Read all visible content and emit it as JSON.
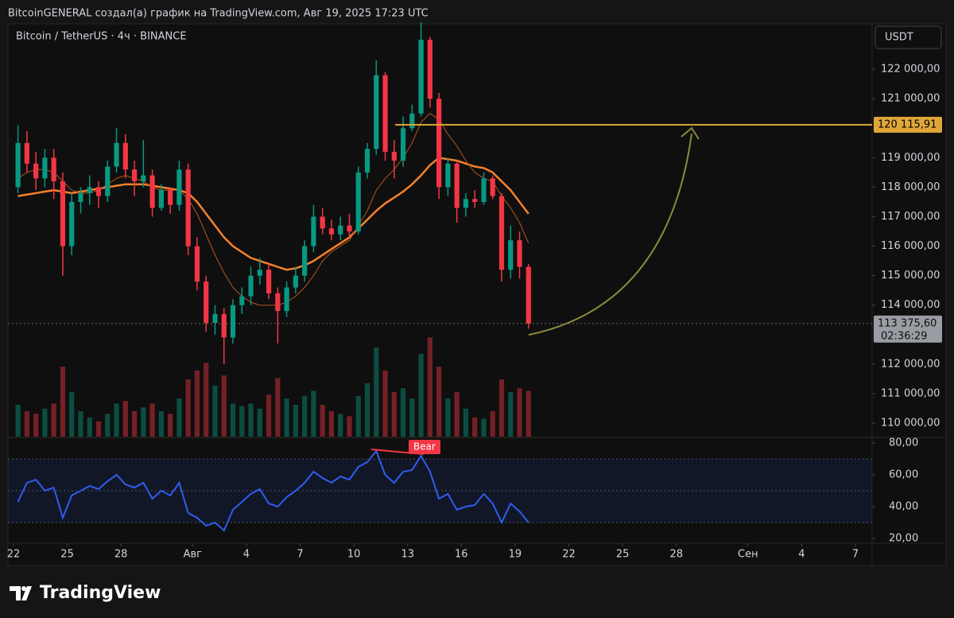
{
  "header": "BitcoinGENERAL создал(а) график на TradingView.com, Авг 19, 2025 17:23 UTC",
  "footer_logo": "TradingView",
  "currency_button": "USDT",
  "chart_data": {
    "type": "candlestick",
    "title": "Bitcoin / TetherUS · 4ч · BINANCE",
    "up_color": "#089981",
    "down_color": "#f23645",
    "x": [
      0.25,
      0.75,
      1.25,
      1.75,
      2.25,
      2.75,
      3.25,
      3.75,
      4.25,
      4.75,
      5.25,
      5.75,
      6.25,
      6.75,
      7.25,
      7.75,
      8.25,
      8.75,
      9.25,
      9.75,
      10.25,
      10.75,
      11.25,
      11.75,
      12.25,
      12.75,
      13.25,
      13.75,
      14.25,
      14.75,
      15.25,
      15.75,
      16.25,
      16.75,
      17.25,
      17.75,
      18.25,
      18.75,
      19.25,
      19.75,
      20.25,
      20.75,
      21.25,
      21.75,
      22.25,
      22.75,
      23.25,
      23.75,
      24.25,
      24.75,
      25.25,
      25.75,
      26.25,
      26.75,
      27.25,
      27.75,
      28.25,
      28.75
    ],
    "open": [
      118000,
      119500,
      118800,
      118300,
      119000,
      118200,
      116000,
      117500,
      117800,
      118000,
      117700,
      118700,
      119500,
      118600,
      118200,
      118400,
      117300,
      117900,
      117400,
      118600,
      116000,
      114800,
      113400,
      113700,
      112900,
      114000,
      114300,
      115000,
      115200,
      114400,
      113800,
      114600,
      115000,
      116000,
      117000,
      116600,
      116400,
      116700,
      116500,
      118500,
      119300,
      121800,
      119200,
      118900,
      120000,
      120500,
      123000,
      121000,
      118000,
      118800,
      117300,
      117600,
      117500,
      118300,
      117700,
      115200,
      116200,
      115300
    ],
    "high": [
      120100,
      119900,
      119200,
      119300,
      119300,
      118500,
      117800,
      118000,
      118400,
      118200,
      118900,
      120000,
      119800,
      118900,
      119600,
      118600,
      118100,
      118000,
      118900,
      118800,
      116300,
      115000,
      114000,
      113900,
      114200,
      114600,
      115300,
      115600,
      115400,
      114600,
      114800,
      115300,
      116200,
      117400,
      117300,
      116900,
      117000,
      117100,
      118700,
      119500,
      122300,
      121900,
      119600,
      120400,
      120800,
      123600,
      123100,
      121200,
      119000,
      118900,
      117800,
      117900,
      118500,
      118400,
      117800,
      116700,
      116500,
      115400
    ],
    "low": [
      117800,
      118500,
      117900,
      118000,
      117600,
      115000,
      115700,
      117100,
      117400,
      117300,
      117500,
      118500,
      118300,
      117700,
      118000,
      117000,
      117200,
      117100,
      117200,
      115700,
      114500,
      113100,
      113000,
      112000,
      112700,
      113700,
      114000,
      114700,
      114200,
      112700,
      113600,
      114400,
      114800,
      115800,
      116400,
      116200,
      116200,
      116300,
      116400,
      118300,
      119100,
      118900,
      118300,
      118700,
      119900,
      120400,
      120700,
      117600,
      117700,
      116800,
      117000,
      117300,
      117400,
      117600,
      114800,
      114900,
      114900,
      113200
    ],
    "close": [
      119500,
      118800,
      118300,
      119000,
      118200,
      116000,
      117500,
      117800,
      118000,
      117700,
      118700,
      119500,
      118600,
      118200,
      118400,
      117300,
      117900,
      117400,
      118600,
      116000,
      114800,
      113400,
      113700,
      112900,
      114000,
      114300,
      115000,
      115200,
      114400,
      113800,
      114600,
      115000,
      116000,
      117000,
      116600,
      116400,
      116700,
      116500,
      118500,
      119300,
      121800,
      119200,
      118900,
      120000,
      120500,
      123000,
      121000,
      118000,
      118800,
      117300,
      117600,
      117500,
      118300,
      117700,
      115200,
      116200,
      115300,
      113375.6
    ],
    "volume": [
      2500,
      2000,
      1800,
      2200,
      2600,
      5500,
      3500,
      2000,
      1500,
      1200,
      1800,
      2600,
      2800,
      2000,
      2300,
      2600,
      2000,
      1800,
      3000,
      4500,
      5200,
      5800,
      4000,
      4800,
      2600,
      2400,
      2600,
      2200,
      3300,
      4600,
      3000,
      2500,
      3200,
      3600,
      2500,
      2000,
      1800,
      1600,
      3200,
      4200,
      7000,
      5200,
      3500,
      3800,
      3000,
      6500,
      7800,
      5500,
      3000,
      3500,
      2200,
      1500,
      1400,
      2000,
      4500,
      3500,
      3800,
      3600
    ],
    "volume_ylim": [
      0,
      10000
    ],
    "moving_averages": [
      {
        "color": "#f7812a",
        "width": 2.5,
        "values": [
          117700,
          117750,
          117800,
          117850,
          117900,
          117850,
          117800,
          117850,
          117900,
          117950,
          118000,
          118050,
          118100,
          118100,
          118100,
          118050,
          118000,
          117950,
          117900,
          117800,
          117500,
          117100,
          116700,
          116300,
          116000,
          115800,
          115600,
          115500,
          115400,
          115300,
          115200,
          115250,
          115350,
          115500,
          115700,
          115900,
          116100,
          116300,
          116600,
          116900,
          117200,
          117450,
          117650,
          117850,
          118100,
          118400,
          118750,
          119000,
          118950,
          118900,
          118800,
          118700,
          118650,
          118500,
          118200,
          117900,
          117500,
          117100
        ]
      },
      {
        "color": "#b8561f",
        "width": 1,
        "values": [
          118300,
          118500,
          118600,
          118600,
          118500,
          118200,
          117900,
          117800,
          117800,
          117900,
          118100,
          118300,
          118400,
          118300,
          118200,
          118000,
          117900,
          117900,
          117900,
          117600,
          117100,
          116400,
          115700,
          115100,
          114600,
          114300,
          114100,
          114000,
          114000,
          114000,
          114100,
          114300,
          114600,
          115000,
          115500,
          115800,
          116000,
          116200,
          116700,
          117200,
          117900,
          118300,
          118600,
          119000,
          119500,
          120200,
          120500,
          120300,
          119800,
          119400,
          118900,
          118500,
          118300,
          118200,
          117700,
          117300,
          116800,
          116100
        ]
      }
    ],
    "xlim": [
      -0.31,
      47.93
    ],
    "xticks": [
      {
        "value": 0,
        "label": "22"
      },
      {
        "value": 3,
        "label": "25"
      },
      {
        "value": 6,
        "label": "28"
      },
      {
        "value": 10,
        "label": "Авг"
      },
      {
        "value": 13,
        "label": "4"
      },
      {
        "value": 16,
        "label": "7"
      },
      {
        "value": 19,
        "label": "10"
      },
      {
        "value": 22,
        "label": "13"
      },
      {
        "value": 25,
        "label": "16"
      },
      {
        "value": 28,
        "label": "19"
      },
      {
        "value": 31,
        "label": "22"
      },
      {
        "value": 34,
        "label": "25"
      },
      {
        "value": 37,
        "label": "28"
      },
      {
        "value": 41,
        "label": "Сен"
      },
      {
        "value": 44,
        "label": "4"
      },
      {
        "value": 47,
        "label": "7"
      }
    ],
    "ylim": [
      109540,
      123540
    ],
    "yticks": [
      {
        "value": 122000,
        "label": "122 000,00"
      },
      {
        "value": 121000,
        "label": "121 000,00"
      },
      {
        "value": 119000,
        "label": "119 000,00"
      },
      {
        "value": 118000,
        "label": "118 000,00"
      },
      {
        "value": 117000,
        "label": "117 000,00"
      },
      {
        "value": 116000,
        "label": "116 000,00"
      },
      {
        "value": 115000,
        "label": "115 000,00"
      },
      {
        "value": 114000,
        "label": "114 000,00"
      },
      {
        "value": 112000,
        "label": "112 000,00"
      },
      {
        "value": 111000,
        "label": "111 000,00"
      },
      {
        "value": 110000,
        "label": "110 000,00"
      }
    ],
    "level": {
      "value": 120115.91,
      "label": "120 115,91",
      "color": "#e0a63a"
    },
    "last_price": {
      "value": 113375.6,
      "label": "113 375,60",
      "countdown": "02:36:29"
    },
    "rsi": {
      "color": "#2f5cf0",
      "values": [
        43,
        55,
        57,
        50,
        52,
        33,
        47,
        50,
        53,
        51,
        56,
        60,
        54,
        52,
        55,
        45,
        50,
        47,
        55,
        36,
        33,
        28,
        30,
        25,
        38,
        43,
        48,
        51,
        42,
        40,
        46,
        50,
        55,
        62,
        58,
        55,
        59,
        57,
        65,
        68,
        75,
        60,
        55,
        62,
        63,
        72,
        62,
        45,
        48,
        38,
        40,
        41,
        48,
        42,
        30,
        42,
        37,
        30
      ],
      "ylim": [
        17,
        83
      ],
      "bands": [
        30,
        50,
        70
      ],
      "yticks": [
        {
          "value": 80,
          "label": "80,00"
        },
        {
          "value": 60,
          "label": "60,00"
        },
        {
          "value": 40,
          "label": "40,00"
        },
        {
          "value": 20,
          "label": "20,00"
        }
      ],
      "divergence_label": "Bear"
    }
  }
}
